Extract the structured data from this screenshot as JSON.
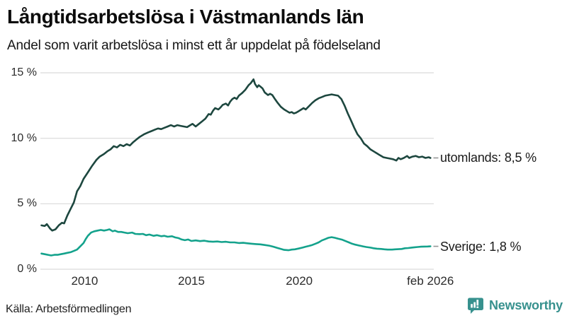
{
  "chart_data": {
    "type": "line",
    "title": "Långtidsarbetslösa i Västmanlands län",
    "subtitle": "Andel som varit arbetslösa i minst ett år uppdelat på födelseland",
    "unit": "%",
    "xlim": [
      2008.0,
      2026.17
    ],
    "ylim": [
      0,
      15
    ],
    "grid": "horizontal",
    "legend_position": "line-end-labels",
    "y_ticks": [
      {
        "v": 0,
        "label": "0 %"
      },
      {
        "v": 5,
        "label": "5 %"
      },
      {
        "v": 10,
        "label": "10 %"
      },
      {
        "v": 15,
        "label": "15 %"
      }
    ],
    "x_ticks": [
      {
        "year": 2010.05,
        "label": "2010"
      },
      {
        "year": 2015.0,
        "label": "2015"
      },
      {
        "year": 2020.0,
        "label": "2020"
      },
      {
        "year": 2026.08,
        "label": "feb 2026"
      }
    ],
    "series": [
      {
        "name": "utomlands",
        "label": "utomlands: 8,5 %",
        "end_value": "8,5 %",
        "color": "#1d473f",
        "points": [
          [
            2008.05,
            3.35
          ],
          [
            2008.2,
            3.3
          ],
          [
            2008.3,
            3.45
          ],
          [
            2008.45,
            3.1
          ],
          [
            2008.55,
            2.95
          ],
          [
            2008.7,
            3.05
          ],
          [
            2008.85,
            3.35
          ],
          [
            2009.0,
            3.55
          ],
          [
            2009.1,
            3.5
          ],
          [
            2009.25,
            4.1
          ],
          [
            2009.4,
            4.6
          ],
          [
            2009.55,
            5.1
          ],
          [
            2009.7,
            5.95
          ],
          [
            2009.85,
            6.35
          ],
          [
            2010.0,
            6.9
          ],
          [
            2010.2,
            7.4
          ],
          [
            2010.4,
            7.9
          ],
          [
            2010.6,
            8.35
          ],
          [
            2010.75,
            8.6
          ],
          [
            2010.95,
            8.8
          ],
          [
            2011.1,
            9.0
          ],
          [
            2011.25,
            9.15
          ],
          [
            2011.4,
            9.4
          ],
          [
            2011.55,
            9.3
          ],
          [
            2011.7,
            9.5
          ],
          [
            2011.85,
            9.4
          ],
          [
            2012.0,
            9.55
          ],
          [
            2012.15,
            9.45
          ],
          [
            2012.3,
            9.7
          ],
          [
            2012.45,
            9.9
          ],
          [
            2012.6,
            10.1
          ],
          [
            2012.8,
            10.3
          ],
          [
            2013.0,
            10.45
          ],
          [
            2013.15,
            10.55
          ],
          [
            2013.3,
            10.65
          ],
          [
            2013.45,
            10.75
          ],
          [
            2013.6,
            10.7
          ],
          [
            2013.75,
            10.8
          ],
          [
            2013.9,
            10.9
          ],
          [
            2014.05,
            11.0
          ],
          [
            2014.2,
            10.9
          ],
          [
            2014.35,
            11.0
          ],
          [
            2014.5,
            10.95
          ],
          [
            2014.65,
            10.9
          ],
          [
            2014.8,
            10.85
          ],
          [
            2014.95,
            11.0
          ],
          [
            2015.05,
            11.1
          ],
          [
            2015.2,
            10.9
          ],
          [
            2015.35,
            11.1
          ],
          [
            2015.5,
            11.3
          ],
          [
            2015.65,
            11.5
          ],
          [
            2015.8,
            11.85
          ],
          [
            2015.9,
            11.8
          ],
          [
            2016.0,
            12.1
          ],
          [
            2016.1,
            12.3
          ],
          [
            2016.25,
            12.2
          ],
          [
            2016.35,
            12.35
          ],
          [
            2016.45,
            12.55
          ],
          [
            2016.6,
            12.65
          ],
          [
            2016.7,
            12.5
          ],
          [
            2016.8,
            12.8
          ],
          [
            2016.9,
            13.0
          ],
          [
            2017.0,
            13.1
          ],
          [
            2017.1,
            13.0
          ],
          [
            2017.2,
            13.25
          ],
          [
            2017.35,
            13.45
          ],
          [
            2017.5,
            13.7
          ],
          [
            2017.65,
            14.05
          ],
          [
            2017.75,
            14.2
          ],
          [
            2017.88,
            14.5
          ],
          [
            2017.95,
            14.15
          ],
          [
            2018.05,
            13.9
          ],
          [
            2018.12,
            14.05
          ],
          [
            2018.2,
            13.95
          ],
          [
            2018.3,
            13.8
          ],
          [
            2018.4,
            13.5
          ],
          [
            2018.55,
            13.3
          ],
          [
            2018.65,
            13.4
          ],
          [
            2018.75,
            13.3
          ],
          [
            2018.85,
            13.05
          ],
          [
            2019.0,
            12.7
          ],
          [
            2019.15,
            12.4
          ],
          [
            2019.3,
            12.2
          ],
          [
            2019.45,
            12.05
          ],
          [
            2019.55,
            11.95
          ],
          [
            2019.65,
            12.0
          ],
          [
            2019.75,
            11.9
          ],
          [
            2019.85,
            11.95
          ],
          [
            2019.95,
            12.05
          ],
          [
            2020.1,
            12.2
          ],
          [
            2020.2,
            12.3
          ],
          [
            2020.3,
            12.2
          ],
          [
            2020.45,
            12.45
          ],
          [
            2020.6,
            12.7
          ],
          [
            2020.75,
            12.9
          ],
          [
            2020.9,
            13.05
          ],
          [
            2021.05,
            13.15
          ],
          [
            2021.2,
            13.25
          ],
          [
            2021.35,
            13.3
          ],
          [
            2021.5,
            13.35
          ],
          [
            2021.65,
            13.3
          ],
          [
            2021.8,
            13.25
          ],
          [
            2021.95,
            13.0
          ],
          [
            2022.1,
            12.5
          ],
          [
            2022.25,
            11.9
          ],
          [
            2022.4,
            11.35
          ],
          [
            2022.55,
            10.8
          ],
          [
            2022.7,
            10.3
          ],
          [
            2022.85,
            10.0
          ],
          [
            2023.0,
            9.6
          ],
          [
            2023.15,
            9.4
          ],
          [
            2023.3,
            9.15
          ],
          [
            2023.45,
            9.0
          ],
          [
            2023.6,
            8.85
          ],
          [
            2023.75,
            8.7
          ],
          [
            2023.9,
            8.55
          ],
          [
            2024.05,
            8.5
          ],
          [
            2024.2,
            8.45
          ],
          [
            2024.35,
            8.4
          ],
          [
            2024.5,
            8.3
          ],
          [
            2024.6,
            8.5
          ],
          [
            2024.7,
            8.4
          ],
          [
            2024.85,
            8.5
          ],
          [
            2025.0,
            8.65
          ],
          [
            2025.1,
            8.5
          ],
          [
            2025.25,
            8.6
          ],
          [
            2025.4,
            8.65
          ],
          [
            2025.55,
            8.55
          ],
          [
            2025.7,
            8.6
          ],
          [
            2025.85,
            8.5
          ],
          [
            2026.0,
            8.55
          ],
          [
            2026.08,
            8.5
          ]
        ]
      },
      {
        "name": "Sverige",
        "label": "Sverige: 1,8 %",
        "end_value": "1,8 %",
        "color": "#14a28c",
        "points": [
          [
            2008.05,
            1.2
          ],
          [
            2008.2,
            1.15
          ],
          [
            2008.35,
            1.1
          ],
          [
            2008.5,
            1.05
          ],
          [
            2008.65,
            1.1
          ],
          [
            2008.8,
            1.1
          ],
          [
            2008.95,
            1.15
          ],
          [
            2009.1,
            1.2
          ],
          [
            2009.25,
            1.25
          ],
          [
            2009.4,
            1.3
          ],
          [
            2009.55,
            1.4
          ],
          [
            2009.7,
            1.5
          ],
          [
            2009.85,
            1.75
          ],
          [
            2010.0,
            2.0
          ],
          [
            2010.1,
            2.3
          ],
          [
            2010.2,
            2.55
          ],
          [
            2010.35,
            2.8
          ],
          [
            2010.5,
            2.9
          ],
          [
            2010.65,
            2.95
          ],
          [
            2010.8,
            3.0
          ],
          [
            2010.95,
            2.95
          ],
          [
            2011.1,
            3.0
          ],
          [
            2011.2,
            3.05
          ],
          [
            2011.35,
            2.9
          ],
          [
            2011.45,
            2.95
          ],
          [
            2011.6,
            2.85
          ],
          [
            2011.75,
            2.85
          ],
          [
            2011.9,
            2.8
          ],
          [
            2012.05,
            2.75
          ],
          [
            2012.25,
            2.8
          ],
          [
            2012.4,
            2.7
          ],
          [
            2012.6,
            2.68
          ],
          [
            2012.75,
            2.7
          ],
          [
            2012.9,
            2.6
          ],
          [
            2013.05,
            2.65
          ],
          [
            2013.25,
            2.55
          ],
          [
            2013.4,
            2.6
          ],
          [
            2013.6,
            2.52
          ],
          [
            2013.75,
            2.55
          ],
          [
            2013.9,
            2.48
          ],
          [
            2014.1,
            2.52
          ],
          [
            2014.25,
            2.43
          ],
          [
            2014.4,
            2.38
          ],
          [
            2014.55,
            2.27
          ],
          [
            2014.7,
            2.22
          ],
          [
            2014.85,
            2.27
          ],
          [
            2015.0,
            2.16
          ],
          [
            2015.2,
            2.2
          ],
          [
            2015.4,
            2.15
          ],
          [
            2015.6,
            2.18
          ],
          [
            2015.8,
            2.12
          ],
          [
            2016.0,
            2.1
          ],
          [
            2016.2,
            2.12
          ],
          [
            2016.4,
            2.08
          ],
          [
            2016.6,
            2.1
          ],
          [
            2016.8,
            2.05
          ],
          [
            2017.0,
            2.05
          ],
          [
            2017.2,
            2.0
          ],
          [
            2017.4,
            2.02
          ],
          [
            2017.6,
            1.98
          ],
          [
            2017.8,
            1.95
          ],
          [
            2018.0,
            1.92
          ],
          [
            2018.2,
            1.9
          ],
          [
            2018.4,
            1.85
          ],
          [
            2018.6,
            1.8
          ],
          [
            2018.8,
            1.72
          ],
          [
            2019.0,
            1.62
          ],
          [
            2019.15,
            1.55
          ],
          [
            2019.3,
            1.48
          ],
          [
            2019.5,
            1.45
          ],
          [
            2019.65,
            1.5
          ],
          [
            2019.8,
            1.52
          ],
          [
            2019.97,
            1.58
          ],
          [
            2020.15,
            1.65
          ],
          [
            2020.3,
            1.72
          ],
          [
            2020.45,
            1.78
          ],
          [
            2020.6,
            1.85
          ],
          [
            2020.75,
            1.95
          ],
          [
            2020.9,
            2.05
          ],
          [
            2021.05,
            2.2
          ],
          [
            2021.2,
            2.3
          ],
          [
            2021.35,
            2.4
          ],
          [
            2021.5,
            2.45
          ],
          [
            2021.65,
            2.4
          ],
          [
            2021.8,
            2.33
          ],
          [
            2022.0,
            2.25
          ],
          [
            2022.15,
            2.15
          ],
          [
            2022.3,
            2.05
          ],
          [
            2022.45,
            1.95
          ],
          [
            2022.6,
            1.88
          ],
          [
            2022.8,
            1.8
          ],
          [
            2022.95,
            1.75
          ],
          [
            2023.1,
            1.7
          ],
          [
            2023.3,
            1.65
          ],
          [
            2023.45,
            1.6
          ],
          [
            2023.6,
            1.57
          ],
          [
            2023.8,
            1.55
          ],
          [
            2023.95,
            1.52
          ],
          [
            2024.1,
            1.5
          ],
          [
            2024.3,
            1.5
          ],
          [
            2024.45,
            1.52
          ],
          [
            2024.6,
            1.53
          ],
          [
            2024.75,
            1.55
          ],
          [
            2024.9,
            1.6
          ],
          [
            2025.05,
            1.62
          ],
          [
            2025.2,
            1.65
          ],
          [
            2025.35,
            1.68
          ],
          [
            2025.5,
            1.7
          ],
          [
            2025.65,
            1.72
          ],
          [
            2025.8,
            1.73
          ],
          [
            2025.95,
            1.74
          ],
          [
            2026.08,
            1.75
          ]
        ]
      }
    ]
  },
  "footer": {
    "source": "Källa: Arbetsförmedlingen",
    "brand": "Newsworthy"
  },
  "colors": {
    "grid": "#d9d9d9",
    "axis_text": "#2b2b2b",
    "series_label_text": "#1a1a1a",
    "tick_dash": "#949494",
    "brand_teal": "#37918e",
    "series_foreign": "#1d473f",
    "series_sweden": "#14a28c"
  }
}
